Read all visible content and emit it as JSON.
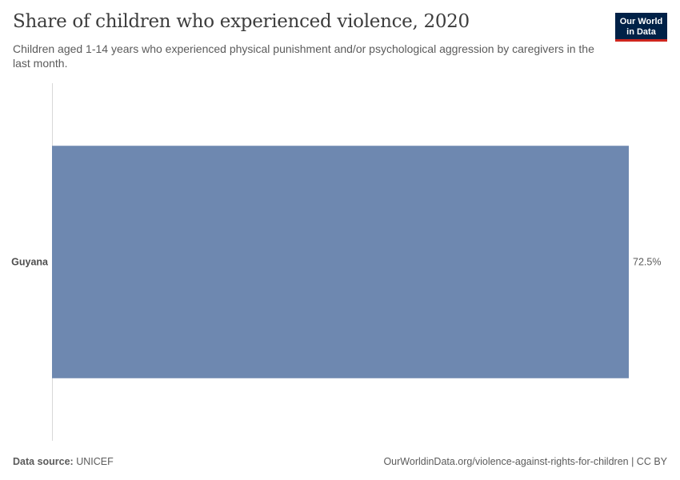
{
  "header": {
    "title": "Share of children who experienced violence, 2020",
    "subtitle": "Children aged 1-14 years who experienced physical punishment and/or psychological aggression by caregivers in the last month."
  },
  "logo": {
    "line1": "Our World",
    "line2": "in Data",
    "bg_color": "#002147",
    "accent_color": "#ce261e"
  },
  "footer": {
    "source_label": "Data source:",
    "source_value": "UNICEF",
    "url": "OurWorldinData.org/violence-against-rights-for-children | CC BY"
  },
  "chart_data": {
    "type": "bar",
    "orientation": "horizontal",
    "title": "Share of children who experienced violence, 2020",
    "categories": [
      "Guyana"
    ],
    "values": [
      72.5
    ],
    "value_labels": [
      "72.5%"
    ],
    "unit": "%",
    "xlim": [
      0,
      72.5
    ],
    "bar_color": "#6e88b0",
    "grid": false
  }
}
